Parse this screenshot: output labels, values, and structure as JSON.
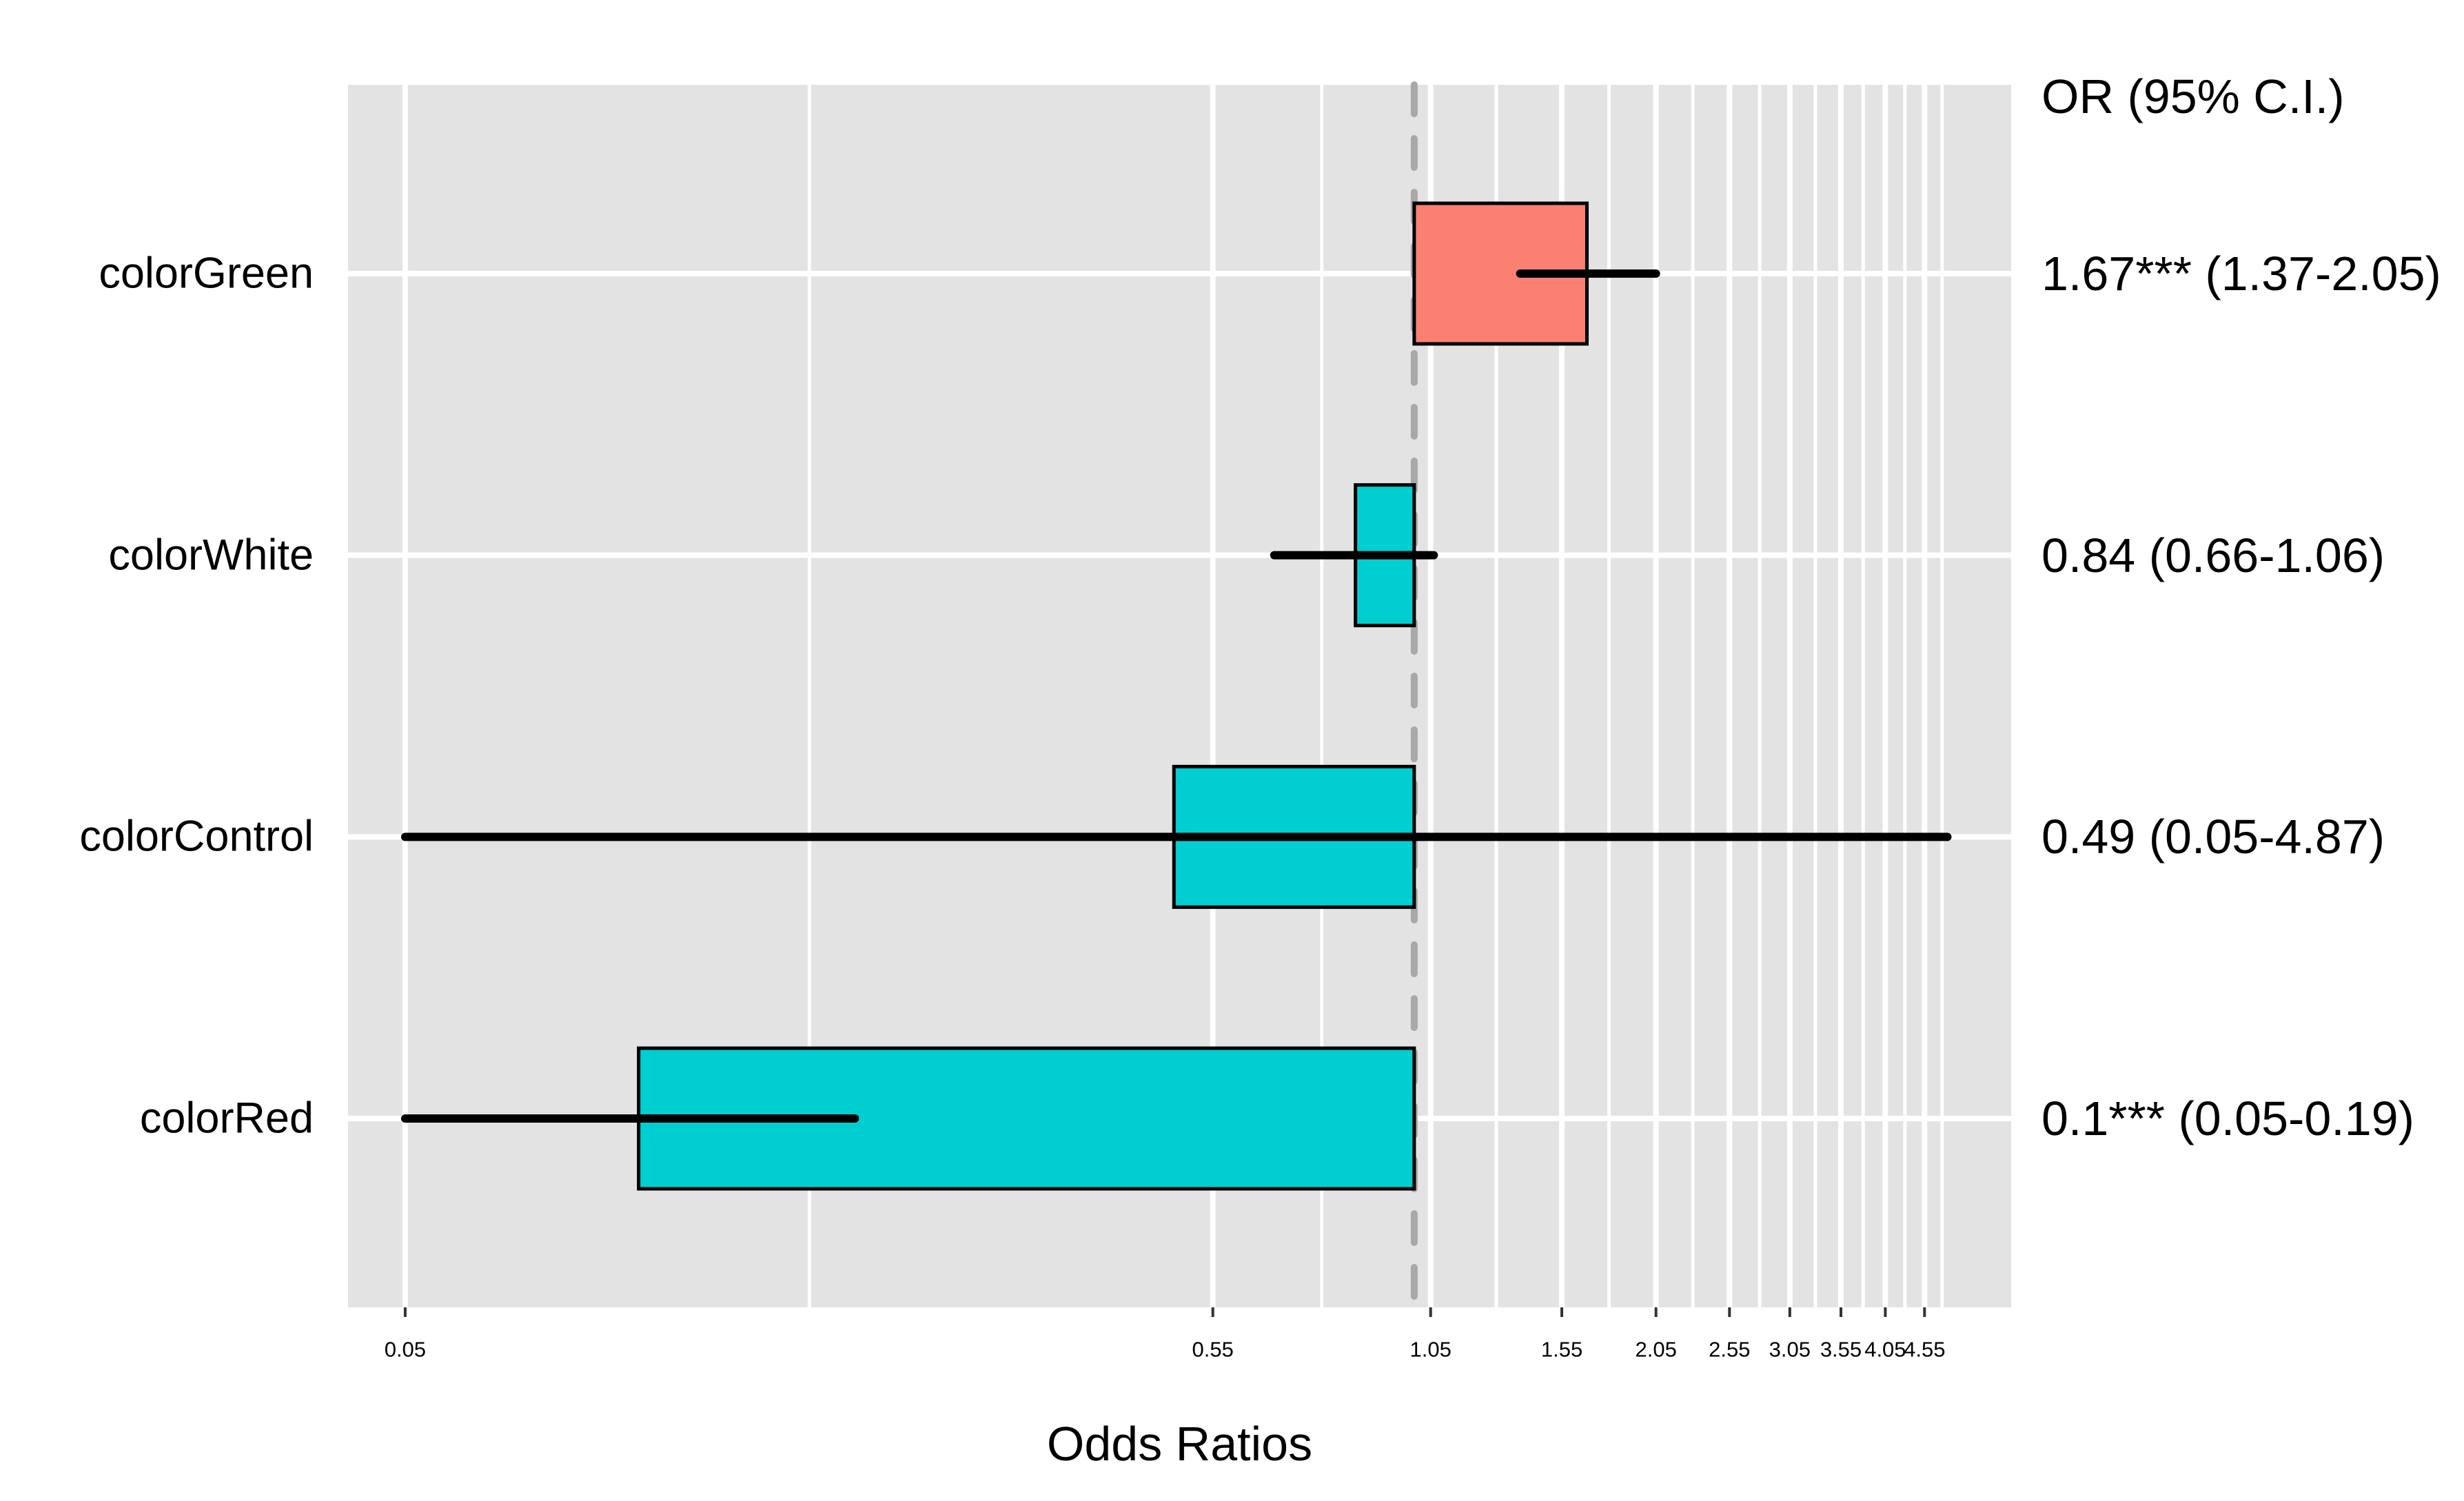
{
  "chart_data": {
    "type": "forest",
    "title": "",
    "xlabel": "Odds Ratios",
    "right_column_header": "OR (95% C.I.)",
    "x_scale": "log10",
    "xlim": [
      0.0422,
      5.885
    ],
    "grid": true,
    "legend_position": "none",
    "reference_line_value": 1,
    "x_tick_values": [
      0.05,
      0.55,
      1.05,
      1.55,
      2.05,
      2.55,
      3.05,
      3.55,
      4.05,
      4.55
    ],
    "x_tick_labels": [
      "0.05",
      "0.55",
      "1.05",
      "1.55",
      "2.05",
      "2.55",
      "3.05",
      "3.55",
      "4.05",
      "4.55"
    ],
    "x_minor_tick_values": [
      0.166,
      0.76,
      1.276,
      1.783,
      2.287,
      2.789,
      3.291,
      3.792,
      4.293,
      4.794
    ],
    "rows": [
      {
        "term": "colorGreen",
        "or": 1.67,
        "ci_low": 1.37,
        "ci_high": 2.05,
        "significance": "***",
        "display": "1.67*** (1.37-2.05)",
        "color": "#FA8072"
      },
      {
        "term": "colorWhite",
        "or": 0.84,
        "ci_low": 0.66,
        "ci_high": 1.06,
        "significance": "",
        "display": "0.84 (0.66-1.06)",
        "color": "#00CED1"
      },
      {
        "term": "colorControl",
        "or": 0.49,
        "ci_low": 0.05,
        "ci_high": 4.87,
        "significance": "",
        "display": "0.49 (0.05-4.87)",
        "color": "#00CED1"
      },
      {
        "term": "colorRed",
        "or": 0.1,
        "ci_low": 0.05,
        "ci_high": 0.19,
        "significance": "***",
        "display": "0.1*** (0.05-0.19)",
        "color": "#00CED1"
      }
    ],
    "colors": {
      "positive_bar": "#FA8072",
      "negative_bar": "#00CED1",
      "panel_background": "#E3E3E3",
      "gridline": "#FFFFFF",
      "reference_line": "#A8A8A8",
      "whisker": "#000000",
      "bar_border": "#000000",
      "text": "#000000",
      "tick_mark": "#333333"
    }
  }
}
